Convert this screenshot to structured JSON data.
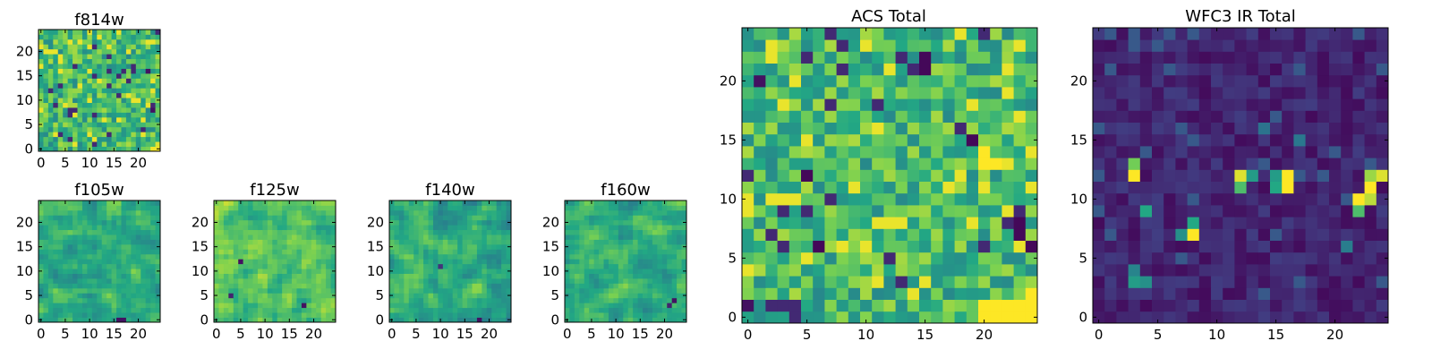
{
  "figure": {
    "colormap": "viridis",
    "colormap_stops": [
      "#440154",
      "#414487",
      "#2a788e",
      "#22a884",
      "#7ad151",
      "#fde725"
    ]
  },
  "chart_data": [
    {
      "type": "heatmap",
      "id": "f814w",
      "title": "f814w",
      "grid_size": 25,
      "xlim": [
        -0.5,
        24.5
      ],
      "ylim": [
        -0.5,
        24.5
      ],
      "xticks": [
        0,
        5,
        10,
        15,
        20
      ],
      "yticks": [
        0,
        5,
        10,
        15,
        20
      ],
      "xtick_labels": [
        "0",
        "5",
        "10",
        "15",
        "20"
      ],
      "ytick_labels": [
        "0",
        "5",
        "10",
        "15",
        "20"
      ],
      "value_range": [
        0,
        1
      ],
      "seed": 11,
      "distribution": "noisy-green",
      "highlights": [
        {
          "x": 23,
          "y": 0,
          "v": 0.98
        },
        {
          "x": 24,
          "y": 0,
          "v": 0.98
        },
        {
          "x": 24,
          "y": 1,
          "v": 0.95
        },
        {
          "x": 22,
          "y": 16,
          "v": 0.05
        },
        {
          "x": 23,
          "y": 8,
          "v": 0.05
        }
      ]
    },
    {
      "type": "heatmap",
      "id": "f105w",
      "title": "f105w",
      "grid_size": 25,
      "xlim": [
        -0.5,
        24.5
      ],
      "ylim": [
        -0.5,
        24.5
      ],
      "xticks": [
        0,
        5,
        10,
        15,
        20
      ],
      "yticks": [
        0,
        5,
        10,
        15,
        20
      ],
      "xtick_labels": [
        "0",
        "5",
        "10",
        "15",
        "20"
      ],
      "ytick_labels": [
        "0",
        "5",
        "10",
        "15",
        "20"
      ],
      "value_range": [
        0,
        1
      ],
      "seed": 23,
      "distribution": "smooth-green",
      "highlights": [
        {
          "x": 16,
          "y": 0,
          "v": 0.05
        },
        {
          "x": 17,
          "y": 0,
          "v": 0.05
        }
      ]
    },
    {
      "type": "heatmap",
      "id": "f125w",
      "title": "f125w",
      "grid_size": 25,
      "xlim": [
        -0.5,
        24.5
      ],
      "ylim": [
        -0.5,
        24.5
      ],
      "xticks": [
        0,
        5,
        10,
        15,
        20
      ],
      "yticks": [
        0,
        5,
        10,
        15,
        20
      ],
      "xtick_labels": [
        "0",
        "5",
        "10",
        "15",
        "20"
      ],
      "ytick_labels": [
        "0",
        "5",
        "10",
        "15",
        "20"
      ],
      "value_range": [
        0,
        1
      ],
      "seed": 37,
      "distribution": "smooth-yellow",
      "highlights": [
        {
          "x": 5,
          "y": 12,
          "v": 0.05
        },
        {
          "x": 18,
          "y": 3,
          "v": 0.05
        },
        {
          "x": 3,
          "y": 5,
          "v": 0.1
        }
      ]
    },
    {
      "type": "heatmap",
      "id": "f140w",
      "title": "f140w",
      "grid_size": 25,
      "xlim": [
        -0.5,
        24.5
      ],
      "ylim": [
        -0.5,
        24.5
      ],
      "xticks": [
        0,
        5,
        10,
        15,
        20
      ],
      "yticks": [
        0,
        5,
        10,
        15,
        20
      ],
      "xtick_labels": [
        "0",
        "5",
        "10",
        "15",
        "20"
      ],
      "ytick_labels": [
        "0",
        "5",
        "10",
        "15",
        "20"
      ],
      "value_range": [
        0,
        1
      ],
      "seed": 53,
      "distribution": "smooth-green",
      "highlights": [
        {
          "x": 18,
          "y": 0,
          "v": 0.05
        },
        {
          "x": 10,
          "y": 11,
          "v": 0.15
        }
      ]
    },
    {
      "type": "heatmap",
      "id": "f160w",
      "title": "f160w",
      "grid_size": 25,
      "xlim": [
        -0.5,
        24.5
      ],
      "ylim": [
        -0.5,
        24.5
      ],
      "xticks": [
        0,
        5,
        10,
        15,
        20
      ],
      "yticks": [
        0,
        5,
        10,
        15,
        20
      ],
      "xtick_labels": [
        "0",
        "5",
        "10",
        "15",
        "20"
      ],
      "ytick_labels": [
        "0",
        "5",
        "10",
        "15",
        "20"
      ],
      "value_range": [
        0,
        1
      ],
      "seed": 71,
      "distribution": "smooth-green",
      "highlights": [
        {
          "x": 22,
          "y": 4,
          "v": 0.05
        },
        {
          "x": 21,
          "y": 3,
          "v": 0.1
        }
      ]
    },
    {
      "type": "heatmap",
      "id": "acs-total",
      "title": "ACS Total",
      "grid_size": 25,
      "xlim": [
        -0.5,
        24.5
      ],
      "ylim": [
        -0.5,
        24.5
      ],
      "xticks": [
        0,
        5,
        10,
        15,
        20
      ],
      "yticks": [
        0,
        5,
        10,
        15,
        20
      ],
      "xtick_labels": [
        "0",
        "5",
        "10",
        "15",
        "20"
      ],
      "ytick_labels": [
        "0",
        "5",
        "10",
        "15",
        "20"
      ],
      "value_range": [
        0,
        1
      ],
      "seed": 97,
      "distribution": "noisy-green",
      "highlights": [
        {
          "x": 5,
          "y": 12,
          "v": 0.02
        },
        {
          "x": 6,
          "y": 6,
          "v": 0.02
        },
        {
          "x": 15,
          "y": 22,
          "v": 0.02
        },
        {
          "x": 15,
          "y": 21,
          "v": 0.02
        },
        {
          "x": 19,
          "y": 15,
          "v": 0.02
        },
        {
          "x": 23,
          "y": 7,
          "v": 0.02
        },
        {
          "x": 23,
          "y": 8,
          "v": 0.02
        },
        {
          "x": 24,
          "y": 6,
          "v": 0.02
        },
        {
          "x": 1,
          "y": 20,
          "v": 0.05
        },
        {
          "x": 0,
          "y": 1,
          "v": 0.05
        },
        {
          "x": 20,
          "y": 0,
          "v": 1.0
        },
        {
          "x": 21,
          "y": 0,
          "v": 1.0
        },
        {
          "x": 22,
          "y": 0,
          "v": 1.0
        },
        {
          "x": 23,
          "y": 0,
          "v": 1.0
        },
        {
          "x": 24,
          "y": 0,
          "v": 1.0
        },
        {
          "x": 20,
          "y": 1,
          "v": 1.0
        },
        {
          "x": 21,
          "y": 1,
          "v": 1.0
        },
        {
          "x": 22,
          "y": 1,
          "v": 1.0
        },
        {
          "x": 23,
          "y": 1,
          "v": 1.0
        },
        {
          "x": 24,
          "y": 1,
          "v": 1.0
        },
        {
          "x": 24,
          "y": 2,
          "v": 1.0
        },
        {
          "x": 20,
          "y": 13,
          "v": 1.0
        },
        {
          "x": 20,
          "y": 14,
          "v": 1.0
        },
        {
          "x": 21,
          "y": 13,
          "v": 1.0
        }
      ]
    },
    {
      "type": "heatmap",
      "id": "wfc3-ir-total",
      "title": "WFC3 IR Total",
      "grid_size": 25,
      "xlim": [
        -0.5,
        24.5
      ],
      "ylim": [
        -0.5,
        24.5
      ],
      "xticks": [
        0,
        5,
        10,
        15,
        20
      ],
      "yticks": [
        0,
        5,
        10,
        15,
        20
      ],
      "xtick_labels": [
        "0",
        "5",
        "10",
        "15",
        "20"
      ],
      "ytick_labels": [
        "0",
        "5",
        "10",
        "15",
        "20"
      ],
      "value_range": [
        0,
        1
      ],
      "seed": 131,
      "distribution": "low-purple",
      "highlights": [
        {
          "x": 3,
          "y": 12,
          "v": 1.0
        },
        {
          "x": 3,
          "y": 13,
          "v": 0.78
        },
        {
          "x": 12,
          "y": 12,
          "v": 0.95
        },
        {
          "x": 12,
          "y": 11,
          "v": 0.7
        },
        {
          "x": 13,
          "y": 12,
          "v": 0.55
        },
        {
          "x": 15,
          "y": 12,
          "v": 0.55
        },
        {
          "x": 16,
          "y": 12,
          "v": 1.0
        },
        {
          "x": 16,
          "y": 11,
          "v": 1.0
        },
        {
          "x": 15,
          "y": 11,
          "v": 0.6
        },
        {
          "x": 23,
          "y": 12,
          "v": 0.85
        },
        {
          "x": 24,
          "y": 12,
          "v": 0.95
        },
        {
          "x": 23,
          "y": 11,
          "v": 1.0
        },
        {
          "x": 22,
          "y": 10,
          "v": 1.0
        },
        {
          "x": 23,
          "y": 10,
          "v": 0.9
        },
        {
          "x": 22,
          "y": 9,
          "v": 0.7
        },
        {
          "x": 8,
          "y": 7,
          "v": 1.0
        },
        {
          "x": 8,
          "y": 8,
          "v": 0.6
        },
        {
          "x": 7,
          "y": 7,
          "v": 0.5
        },
        {
          "x": 4,
          "y": 9,
          "v": 0.6
        },
        {
          "x": 3,
          "y": 3,
          "v": 0.55
        },
        {
          "x": 4,
          "y": 3,
          "v": 0.5
        },
        {
          "x": 3,
          "y": 4,
          "v": 0.45
        },
        {
          "x": 17,
          "y": 15,
          "v": 0.4
        },
        {
          "x": 14,
          "y": 16,
          "v": 0.38
        },
        {
          "x": 21,
          "y": 6,
          "v": 0.42
        }
      ]
    }
  ]
}
